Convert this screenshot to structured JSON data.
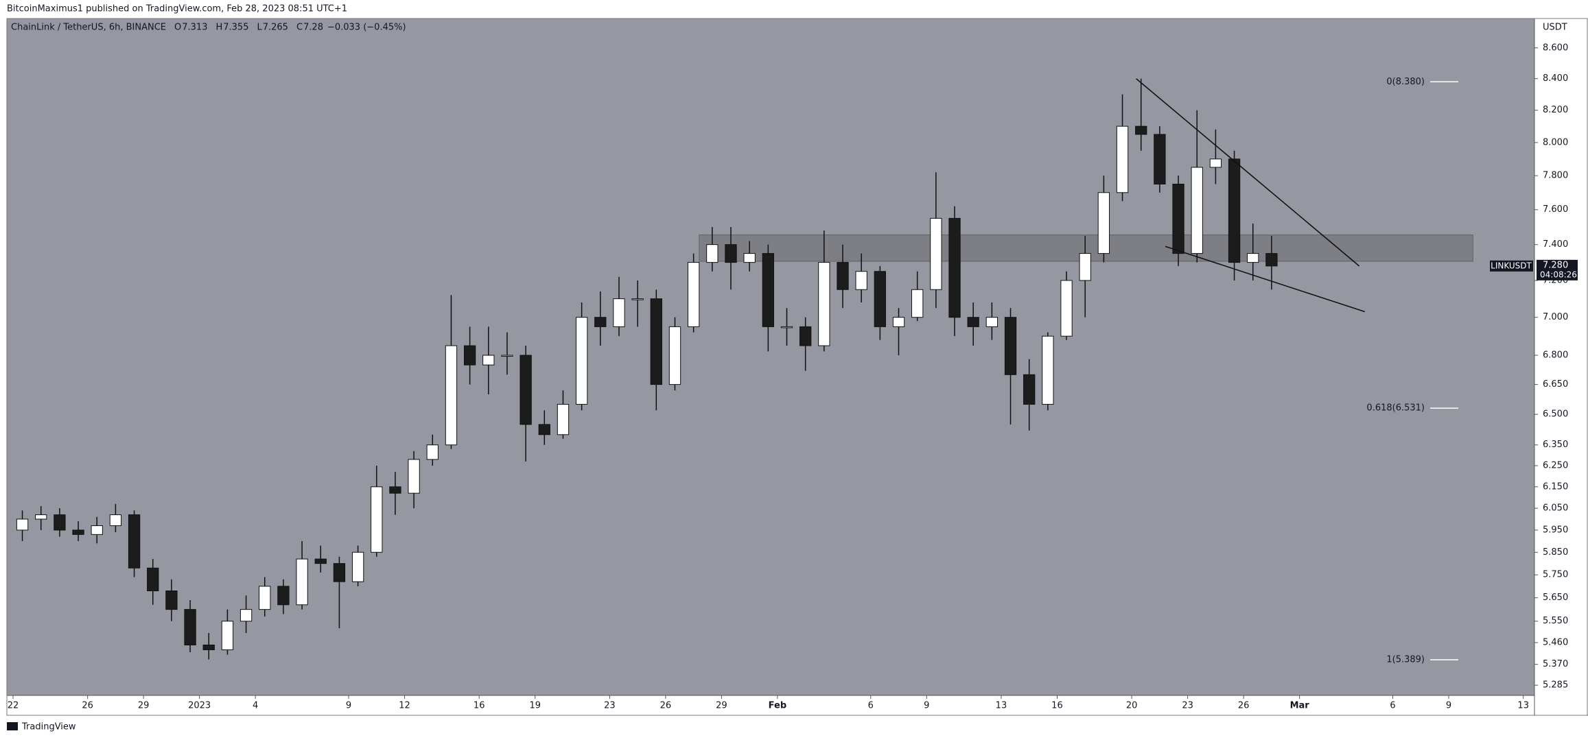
{
  "chart_data": {
    "type": "candlestick",
    "published": "BitcoinMaximus1 published on TradingView.com, Feb 28, 2023 08:51 UTC+1",
    "symbol_title": "ChainLink / TetherUS, 6h, BINANCE",
    "ohlc_header": {
      "open_label": "O",
      "open": 7.313,
      "high_label": "H",
      "high": 7.355,
      "low_label": "L",
      "low": 7.265,
      "close_label": "C",
      "close": 7.28,
      "change": "−0.033 (−0.45%)"
    },
    "currency": "USDT",
    "ticker": "LINKUSDT",
    "last_price": {
      "value": 7.28,
      "label": "7.280"
    },
    "countdown": "04:08:26",
    "footer": "TradingView",
    "log_scale": true,
    "background": "#9598a1",
    "up_color": "#ffffff",
    "down_color": "#1c1c1c",
    "xlim": [
      -0.33,
      81.6
    ],
    "ylim": [
      5.244,
      8.795
    ],
    "xticks": [
      {
        "value": 0,
        "label": "22"
      },
      {
        "value": 4,
        "label": "26"
      },
      {
        "value": 7,
        "label": "29"
      },
      {
        "value": 10,
        "label": "2023"
      },
      {
        "value": 13,
        "label": "4"
      },
      {
        "value": 18,
        "label": "9"
      },
      {
        "value": 21,
        "label": "12"
      },
      {
        "value": 25,
        "label": "16"
      },
      {
        "value": 28,
        "label": "19"
      },
      {
        "value": 32,
        "label": "23"
      },
      {
        "value": 35,
        "label": "26"
      },
      {
        "value": 38,
        "label": "29"
      },
      {
        "value": 41,
        "label": "Feb"
      },
      {
        "value": 46,
        "label": "6"
      },
      {
        "value": 49,
        "label": "9"
      },
      {
        "value": 53,
        "label": "13"
      },
      {
        "value": 56,
        "label": "16"
      },
      {
        "value": 60,
        "label": "20"
      },
      {
        "value": 63,
        "label": "23"
      },
      {
        "value": 66,
        "label": "26"
      },
      {
        "value": 69,
        "label": "Mar"
      },
      {
        "value": 74,
        "label": "6"
      },
      {
        "value": 77,
        "label": "9"
      },
      {
        "value": 81,
        "label": "13"
      }
    ],
    "yticks": [
      {
        "value": 8.6,
        "label": "8.600"
      },
      {
        "value": 8.4,
        "label": "8.400"
      },
      {
        "value": 8.2,
        "label": "8.200"
      },
      {
        "value": 8.0,
        "label": "8.000"
      },
      {
        "value": 7.8,
        "label": "7.800"
      },
      {
        "value": 7.6,
        "label": "7.600"
      },
      {
        "value": 7.4,
        "label": "7.400"
      },
      {
        "value": 7.2,
        "label": "7.200"
      },
      {
        "value": 7.0,
        "label": "7.000"
      },
      {
        "value": 6.8,
        "label": "6.800"
      },
      {
        "value": 6.65,
        "label": "6.650"
      },
      {
        "value": 6.5,
        "label": "6.500"
      },
      {
        "value": 6.35,
        "label": "6.350"
      },
      {
        "value": 6.25,
        "label": "6.250"
      },
      {
        "value": 6.15,
        "label": "6.150"
      },
      {
        "value": 6.05,
        "label": "6.050"
      },
      {
        "value": 5.95,
        "label": "5.950"
      },
      {
        "value": 5.85,
        "label": "5.850"
      },
      {
        "value": 5.75,
        "label": "5.750"
      },
      {
        "value": 5.65,
        "label": "5.650"
      },
      {
        "value": 5.55,
        "label": "5.550"
      },
      {
        "value": 5.46,
        "label": "5.460"
      },
      {
        "value": 5.37,
        "label": "5.370"
      },
      {
        "value": 5.285,
        "label": "5.285"
      }
    ],
    "x": [
      0,
      1,
      2,
      3,
      4,
      5,
      6,
      7,
      8,
      9,
      10,
      11,
      12,
      13,
      14,
      15,
      16,
      17,
      18,
      19,
      20,
      21,
      22,
      23,
      24,
      25,
      26,
      27,
      28,
      29,
      30,
      31,
      32,
      33,
      34,
      35,
      36,
      37,
      38,
      39,
      40,
      41,
      42,
      43,
      44,
      45,
      46,
      47,
      48,
      49,
      50,
      51,
      52,
      53,
      54,
      55,
      56,
      57,
      58,
      59,
      60,
      61,
      62,
      63,
      64,
      65,
      66,
      67
    ],
    "open": [
      5.95,
      6.0,
      6.02,
      5.95,
      5.93,
      5.97,
      6.02,
      5.78,
      5.68,
      5.6,
      5.45,
      5.43,
      5.55,
      5.6,
      5.7,
      5.62,
      5.82,
      5.8,
      5.72,
      5.85,
      6.15,
      6.12,
      6.28,
      6.35,
      6.85,
      6.75,
      6.8,
      6.8,
      6.45,
      6.4,
      6.55,
      7.0,
      6.95,
      7.1,
      7.1,
      6.65,
      6.95,
      7.3,
      7.4,
      7.3,
      7.35,
      6.95,
      6.95,
      6.85,
      7.3,
      7.15,
      7.25,
      6.95,
      7.0,
      7.15,
      7.55,
      7.0,
      6.95,
      7.0,
      6.7,
      6.55,
      6.9,
      7.2,
      7.35,
      7.7,
      8.1,
      8.05,
      7.75,
      7.35,
      7.85,
      7.9,
      7.3,
      7.35
    ],
    "high": [
      6.04,
      6.06,
      6.05,
      5.99,
      6.01,
      6.07,
      6.04,
      5.82,
      5.73,
      5.64,
      5.5,
      5.6,
      5.66,
      5.74,
      5.73,
      5.9,
      5.88,
      5.83,
      5.88,
      6.25,
      6.22,
      6.32,
      6.4,
      7.12,
      6.95,
      6.95,
      6.92,
      6.85,
      6.52,
      6.62,
      7.08,
      7.14,
      7.22,
      7.2,
      7.15,
      7.0,
      7.35,
      7.5,
      7.5,
      7.42,
      7.4,
      7.05,
      7.0,
      7.48,
      7.4,
      7.35,
      7.28,
      7.05,
      7.25,
      7.82,
      7.62,
      7.08,
      7.08,
      7.05,
      6.78,
      6.92,
      7.25,
      7.45,
      7.8,
      8.3,
      8.4,
      8.1,
      7.8,
      8.2,
      8.08,
      7.95,
      7.52,
      7.45
    ],
    "low": [
      5.9,
      5.95,
      5.92,
      5.9,
      5.89,
      5.94,
      5.74,
      5.62,
      5.55,
      5.42,
      5.39,
      5.41,
      5.5,
      5.57,
      5.58,
      5.6,
      5.76,
      5.52,
      5.7,
      5.83,
      6.02,
      6.05,
      6.25,
      6.33,
      6.65,
      6.6,
      6.7,
      6.27,
      6.35,
      6.38,
      6.52,
      6.85,
      6.9,
      6.95,
      6.52,
      6.62,
      6.92,
      7.25,
      7.15,
      7.25,
      6.82,
      6.85,
      6.72,
      6.82,
      7.05,
      7.08,
      6.88,
      6.8,
      6.98,
      7.05,
      6.9,
      6.85,
      6.88,
      6.45,
      6.42,
      6.52,
      6.88,
      7.0,
      7.3,
      7.65,
      7.95,
      7.7,
      7.28,
      7.3,
      7.75,
      7.2,
      7.2,
      7.15
    ],
    "close": [
      6.0,
      6.02,
      5.95,
      5.93,
      5.97,
      6.02,
      5.78,
      5.68,
      5.6,
      5.45,
      5.43,
      5.55,
      5.6,
      5.7,
      5.62,
      5.82,
      5.8,
      5.72,
      5.85,
      6.15,
      6.12,
      6.28,
      6.35,
      6.85,
      6.75,
      6.8,
      6.8,
      6.45,
      6.4,
      6.55,
      7.0,
      6.95,
      7.1,
      7.1,
      6.65,
      6.95,
      7.3,
      7.4,
      7.3,
      7.35,
      6.95,
      6.95,
      6.85,
      7.3,
      7.15,
      7.25,
      6.95,
      7.0,
      7.15,
      7.55,
      7.0,
      6.95,
      7.0,
      6.7,
      6.55,
      6.9,
      7.2,
      7.35,
      7.7,
      8.1,
      8.05,
      7.75,
      7.35,
      7.85,
      7.9,
      7.3,
      7.35,
      7.28
    ],
    "zone": {
      "x": [
        36.8,
        78.3
      ],
      "y": [
        7.306,
        7.455
      ]
    },
    "trendlines": [
      {
        "x": [
          60.24,
          72.2
        ],
        "y": [
          8.4,
          7.28
        ]
      },
      {
        "x": [
          61.8,
          72.5
        ],
        "y": [
          7.39,
          7.03
        ]
      }
    ],
    "fib_levels": [
      {
        "label": "0(8.380)",
        "value": 8.38
      },
      {
        "label": "0.618(6.531)",
        "value": 6.531
      },
      {
        "label": "1(5.389)",
        "value": 5.389
      }
    ]
  }
}
